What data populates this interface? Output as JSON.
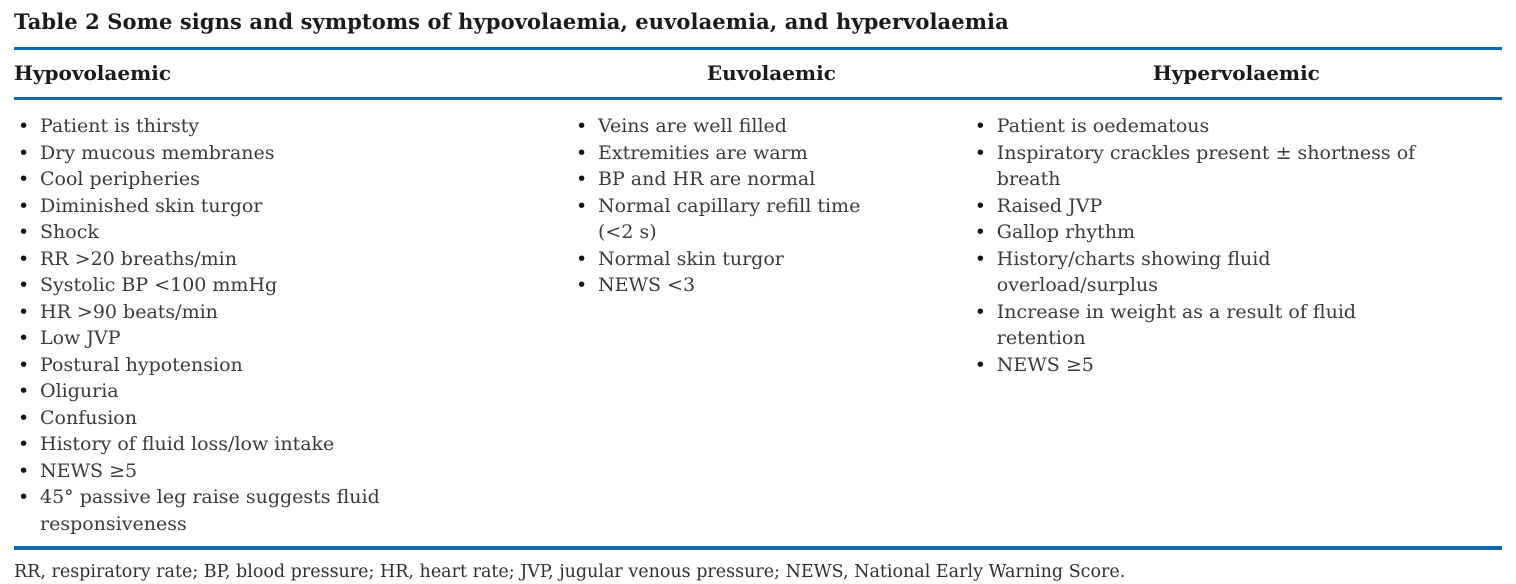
{
  "page": {
    "title": "Table 2 Some signs and symptoms of hypovolaemia, euvolaemia, and hypervolaemia",
    "accent_color": "#1266ab",
    "footnote": "RR, respiratory rate; BP, blood pressure; HR, heart rate; JVP, jugular venous pressure; NEWS, National Early Warning Score."
  },
  "table": {
    "columns": [
      {
        "header": "Hypovolaemic",
        "items": [
          "Patient is thirsty",
          "Dry mucous membranes",
          "Cool peripheries",
          "Diminished skin turgor",
          "Shock",
          "RR >20 breaths/min",
          "Systolic BP <100 mmHg",
          "HR >90 beats/min",
          "Low JVP",
          "Postural hypotension",
          "Oliguria",
          "Confusion",
          "History of fluid loss/low intake",
          "NEWS ≥5",
          "45° passive leg raise suggests fluid responsiveness"
        ]
      },
      {
        "header": "Euvolaemic",
        "items": [
          "Veins are well filled",
          "Extremities are warm",
          "BP and HR are normal",
          "Normal capillary refill time (<2 s)",
          "Normal skin turgor",
          "NEWS <3"
        ]
      },
      {
        "header": "Hypervolaemic",
        "items": [
          "Patient is oedematous",
          "Inspiratory crackles present ± shortness of breath",
          "Raised JVP",
          "Gallop rhythm",
          "History/charts showing fluid overload/surplus",
          "Increase in weight as a result of fluid retention",
          "NEWS ≥5"
        ]
      }
    ]
  }
}
